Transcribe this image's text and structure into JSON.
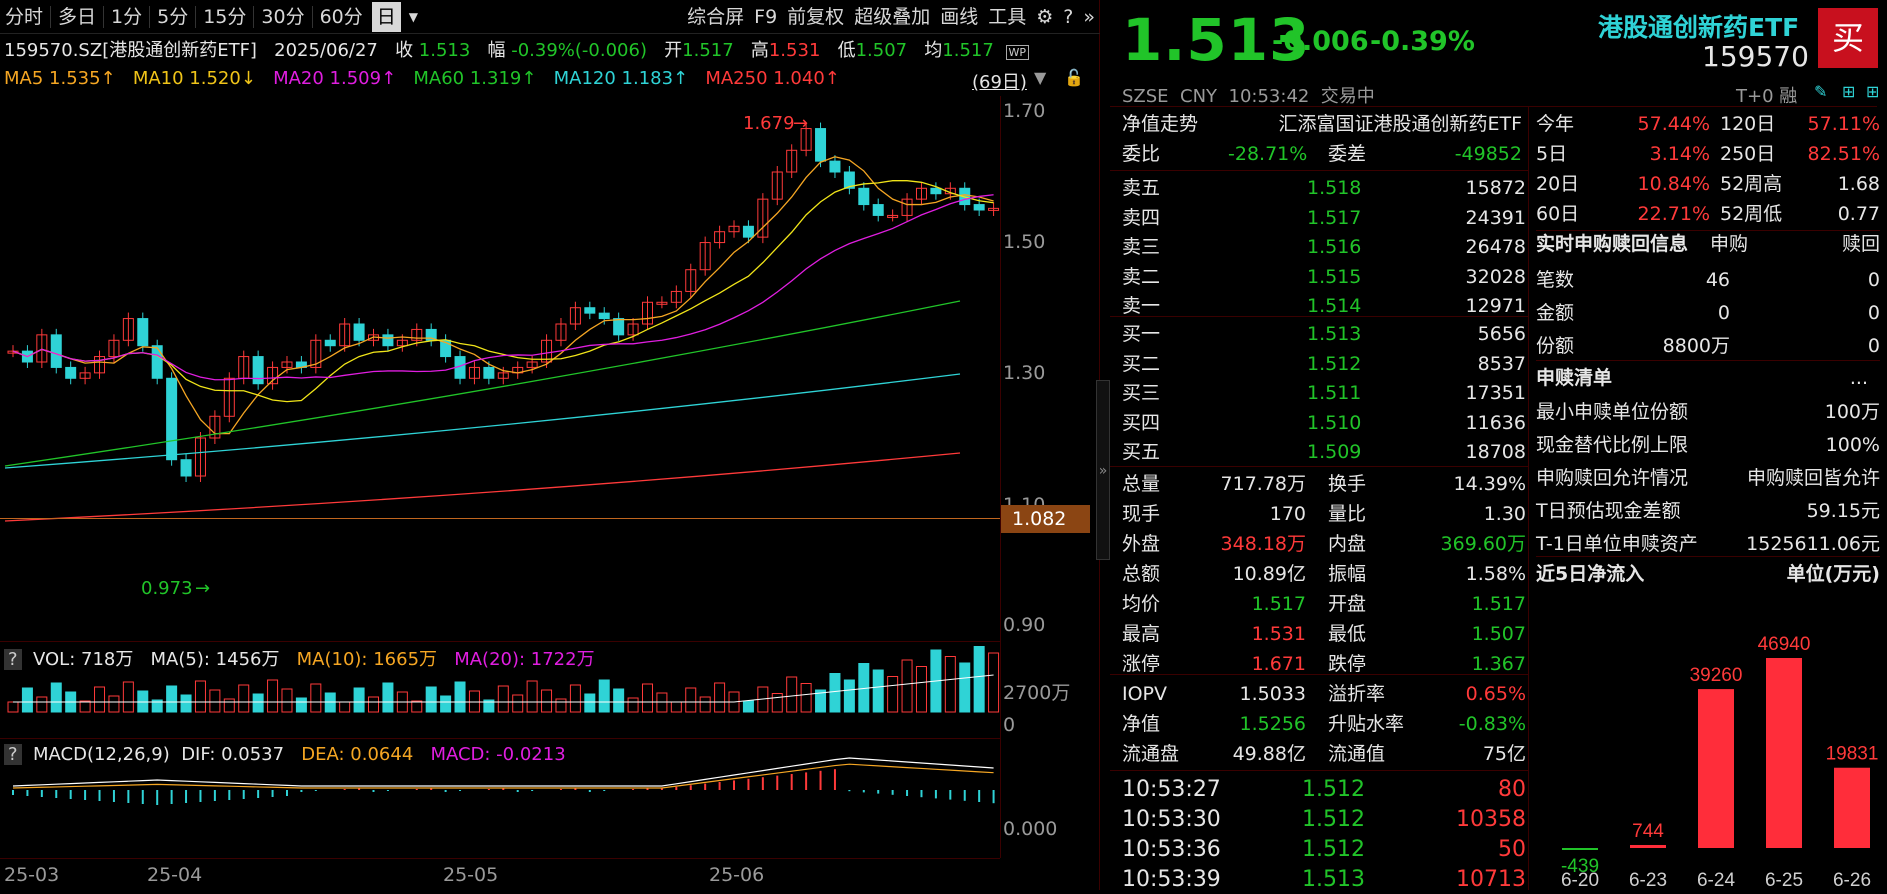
{
  "toolbar": {
    "items": [
      "分时",
      "多日",
      "1分",
      "5分",
      "15分",
      "30分",
      "60分",
      "日"
    ],
    "right_items": [
      "综合屏",
      "F9",
      "前复权",
      "超级叠加",
      "画线",
      "工具"
    ],
    "active": "日"
  },
  "info": {
    "code": "159570.SZ[港股通创新药ETF]",
    "date": "2025/06/27",
    "close_label": "收",
    "close": "1.513",
    "change_label": "幅",
    "change": "-0.39%(-0.006)",
    "open_label": "开",
    "open": "1.517",
    "high_label": "高",
    "high": "1.531",
    "low_label": "低",
    "low": "1.507",
    "avg_label": "均",
    "avg": "1.517",
    "wp": "WP"
  },
  "ma": {
    "ma5": "MA5  1.535↑",
    "ma10": "MA10  1.520↓",
    "ma20": "MA20  1.509↑",
    "ma60": "MA60  1.319↑",
    "ma120": "MA120  1.183↑",
    "ma250": "MA250  1.040↑",
    "period": "(69日)"
  },
  "price_axis": [
    "1.70",
    "1.50",
    "1.30",
    "1.10",
    "0.90"
  ],
  "price_tag": "1.082",
  "annot_high": "1.679",
  "annot_low": "0.973",
  "vol": {
    "q": "?",
    "label": "VOL: 718万",
    "ma5": "MA(5): 1456万",
    "ma10": "MA(10): 1665万",
    "ma20": "MA(20): 1722万",
    "axis_top": "2700万",
    "axis_zero": "0"
  },
  "macd": {
    "q": "?",
    "label": "MACD(12,26,9)",
    "dif": "DIF: 0.0537",
    "dea": "DEA: 0.0644",
    "macd": "MACD: -0.0213",
    "axis_zero": "0.000"
  },
  "x_labels": [
    "25-03",
    "25-04",
    "25-05",
    "25-06"
  ],
  "quote": {
    "price": "1.513",
    "chg": "-0.006",
    "pct": "-0.39%",
    "name": "港股通创新药ETF",
    "code": "159570",
    "buy": "买",
    "exchange": "SZSE",
    "currency": "CNY",
    "time": "10:53:42",
    "status": "交易中",
    "t0": "T+0 融"
  },
  "nav_row": {
    "label": "净值走势",
    "fund": "汇添富国证港股通创新药ETF"
  },
  "weibi": {
    "l1": "委比",
    "v1": "-28.71%",
    "l2": "委差",
    "v2": "-49852"
  },
  "asks": [
    {
      "label": "卖五",
      "price": "1.518",
      "vol": "15872"
    },
    {
      "label": "卖四",
      "price": "1.517",
      "vol": "24391"
    },
    {
      "label": "卖三",
      "price": "1.516",
      "vol": "26478"
    },
    {
      "label": "卖二",
      "price": "1.515",
      "vol": "32028"
    },
    {
      "label": "卖一",
      "price": "1.514",
      "vol": "12971"
    }
  ],
  "bids": [
    {
      "label": "买一",
      "price": "1.513",
      "vol": "5656"
    },
    {
      "label": "买二",
      "price": "1.512",
      "vol": "8537"
    },
    {
      "label": "买三",
      "price": "1.511",
      "vol": "17351"
    },
    {
      "label": "买四",
      "price": "1.510",
      "vol": "11636"
    },
    {
      "label": "买五",
      "price": "1.509",
      "vol": "18708"
    }
  ],
  "stats": [
    [
      "总量",
      "717.78万",
      "换手",
      "14.39%"
    ],
    [
      "现手",
      "170",
      "量比",
      "1.30"
    ],
    [
      "外盘",
      "348.18万",
      "内盘",
      "369.60万"
    ],
    [
      "总额",
      "10.89亿",
      "振幅",
      "1.58%"
    ],
    [
      "均价",
      "1.517",
      "开盘",
      "1.517"
    ],
    [
      "最高",
      "1.531",
      "最低",
      "1.507"
    ],
    [
      "涨停",
      "1.671",
      "跌停",
      "1.367"
    ]
  ],
  "stats2": [
    [
      "IOPV",
      "1.5033",
      "溢折率",
      "0.65%"
    ],
    [
      "净值",
      "1.5256",
      "升贴水率",
      "-0.83%"
    ],
    [
      "流通盘",
      "49.88亿",
      "流通值",
      "75亿"
    ]
  ],
  "ticks": [
    [
      "10:53:27",
      "1.512",
      "80"
    ],
    [
      "10:53:30",
      "1.512",
      "10358"
    ],
    [
      "10:53:36",
      "1.512",
      "50"
    ],
    [
      "10:53:39",
      "1.513",
      "10713"
    ]
  ],
  "perf": [
    [
      "今年",
      "57.44%",
      "120日",
      "57.11%"
    ],
    [
      "5日",
      "3.14%",
      "250日",
      "82.51%"
    ],
    [
      "20日",
      "10.84%",
      "52周高",
      "1.68"
    ],
    [
      "60日",
      "22.71%",
      "52周低",
      "0.77"
    ]
  ],
  "redeem": {
    "title": "实时申购赎回信息",
    "c1": "申购",
    "c2": "赎回",
    "rows": [
      [
        "笔数",
        "46",
        "0"
      ],
      [
        "金额",
        "0",
        "0"
      ],
      [
        "份额",
        "8800万",
        "0"
      ]
    ]
  },
  "list": {
    "title": "申赎清单",
    "more": "...",
    "rows": [
      [
        "最小申赎单位份额",
        "100万"
      ],
      [
        "现金替代比例上限",
        "100%"
      ],
      [
        "申购赎回允许情况",
        "申购赎回皆允许"
      ],
      [
        "T日预估现金差额",
        "59.15元"
      ],
      [
        "T-1日单位申赎资产",
        "1525611.06元"
      ]
    ]
  },
  "flow": {
    "title": "近5日净流入",
    "unit": "单位(万元)"
  },
  "chart_data": {
    "type": "bar",
    "title": "近5日净流入",
    "categories": [
      "6-20",
      "6-23",
      "6-24",
      "6-25",
      "6-26"
    ],
    "values": [
      -439,
      744,
      39260,
      46940,
      19831
    ],
    "ylabel": "单位(万元)"
  }
}
